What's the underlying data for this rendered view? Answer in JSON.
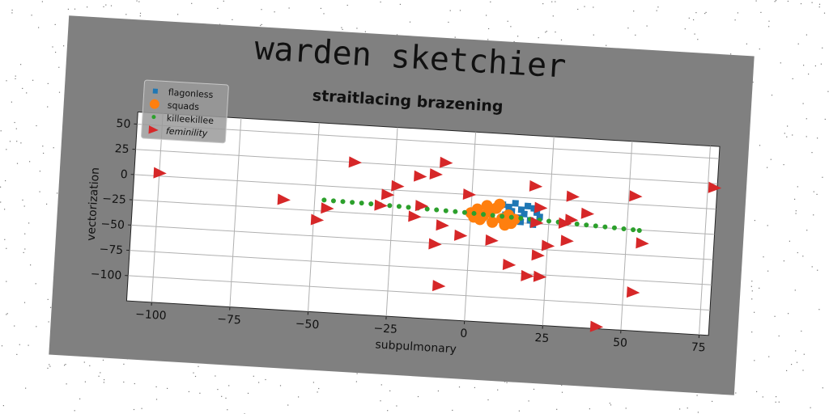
{
  "chart_data": {
    "type": "scatter",
    "title": "warden sketchier",
    "subtitle": "straitlacing brazening",
    "xlabel": "subpulmonary",
    "ylabel": "vectorization",
    "xlim": [
      -108,
      78
    ],
    "ylim": [
      -125,
      62
    ],
    "xticks": [
      -100,
      -75,
      -50,
      -25,
      0,
      25,
      50,
      75
    ],
    "yticks": [
      50,
      25,
      0,
      -25,
      -50,
      -75,
      -100
    ],
    "grid": true,
    "legend_position": "top-left",
    "series": [
      {
        "name": "flagonless",
        "marker": "square",
        "color": "#1f77b4",
        "points": [
          [
            10,
            -8
          ],
          [
            12,
            -10
          ],
          [
            14,
            -6
          ],
          [
            16,
            -12
          ],
          [
            18,
            -8
          ],
          [
            20,
            -10
          ],
          [
            13,
            -14
          ],
          [
            17,
            -16
          ],
          [
            21,
            -14
          ],
          [
            15,
            -20
          ],
          [
            19,
            -22
          ],
          [
            22,
            -18
          ],
          [
            11,
            -18
          ],
          [
            16,
            -24
          ],
          [
            20,
            -26
          ]
        ]
      },
      {
        "name": "squads",
        "marker": "circle",
        "color": "#ff7f0e",
        "points": [
          [
            0,
            -18
          ],
          [
            2,
            -14
          ],
          [
            4,
            -20
          ],
          [
            6,
            -16
          ],
          [
            8,
            -12
          ],
          [
            10,
            -22
          ],
          [
            12,
            -18
          ],
          [
            3,
            -24
          ],
          [
            7,
            -26
          ],
          [
            11,
            -28
          ],
          [
            14,
            -22
          ],
          [
            5,
            -10
          ],
          [
            9,
            -8
          ],
          [
            1,
            -22
          ],
          [
            13,
            -26
          ]
        ]
      },
      {
        "name": "killeekillee",
        "marker": "circle",
        "color": "#2ca02c",
        "points": [
          [
            -47,
            -14
          ],
          [
            -44,
            -14.2
          ],
          [
            -41,
            -14.4
          ],
          [
            -38,
            -14.6
          ],
          [
            -35,
            -14.8
          ],
          [
            -32,
            -15
          ],
          [
            -29,
            -15.3
          ],
          [
            -26,
            -15.6
          ],
          [
            -23,
            -15.9
          ],
          [
            -20,
            -16.2
          ],
          [
            -17,
            -16.5
          ],
          [
            -14,
            -16.8
          ],
          [
            -11,
            -17.1
          ],
          [
            -8,
            -17.4
          ],
          [
            -5,
            -17.7
          ],
          [
            -2,
            -18
          ],
          [
            1,
            -18.4
          ],
          [
            4,
            -18.8
          ],
          [
            7,
            -19.2
          ],
          [
            10,
            -19.6
          ],
          [
            13,
            -20
          ],
          [
            16,
            -20.4
          ],
          [
            19,
            -20.8
          ],
          [
            22,
            -21.2
          ],
          [
            25,
            -21.6
          ],
          [
            28,
            -22
          ],
          [
            31,
            -22.4
          ],
          [
            34,
            -22.8
          ],
          [
            37,
            -23.2
          ],
          [
            40,
            -23.6
          ],
          [
            43,
            -24
          ],
          [
            46,
            -24.4
          ],
          [
            49,
            -24.8
          ],
          [
            52,
            -25.2
          ],
          [
            54,
            -25.5
          ]
        ]
      },
      {
        "name": "feminility",
        "marker": "triangle-right",
        "color": "#d62728",
        "points": [
          [
            -100,
            3
          ],
          [
            -38,
            25
          ],
          [
            -9,
            30
          ],
          [
            -17,
            15
          ],
          [
            -12,
            18
          ],
          [
            -24,
            4
          ],
          [
            -27,
            -5
          ],
          [
            -1,
            0
          ],
          [
            -29,
            -16
          ],
          [
            -16,
            -14
          ],
          [
            -46,
            -22
          ],
          [
            -60,
            -16
          ],
          [
            -49,
            -34
          ],
          [
            -18,
            -25
          ],
          [
            -9,
            -32
          ],
          [
            -3,
            -41
          ],
          [
            -11,
            -51
          ],
          [
            7,
            -44
          ],
          [
            25,
            -46
          ],
          [
            31,
            -40
          ],
          [
            22,
            -56
          ],
          [
            13,
            -67
          ],
          [
            19,
            -77
          ],
          [
            23,
            -77
          ],
          [
            -9,
            -92
          ],
          [
            22,
            -9
          ],
          [
            32,
            -19
          ],
          [
            37,
            -12
          ],
          [
            30,
            -23
          ],
          [
            21,
            -24
          ],
          [
            20,
            12
          ],
          [
            32,
            4
          ],
          [
            52,
            8
          ],
          [
            77,
            21
          ],
          [
            55,
            -38
          ],
          [
            53,
            -87
          ],
          [
            42,
            -123
          ]
        ]
      }
    ]
  }
}
